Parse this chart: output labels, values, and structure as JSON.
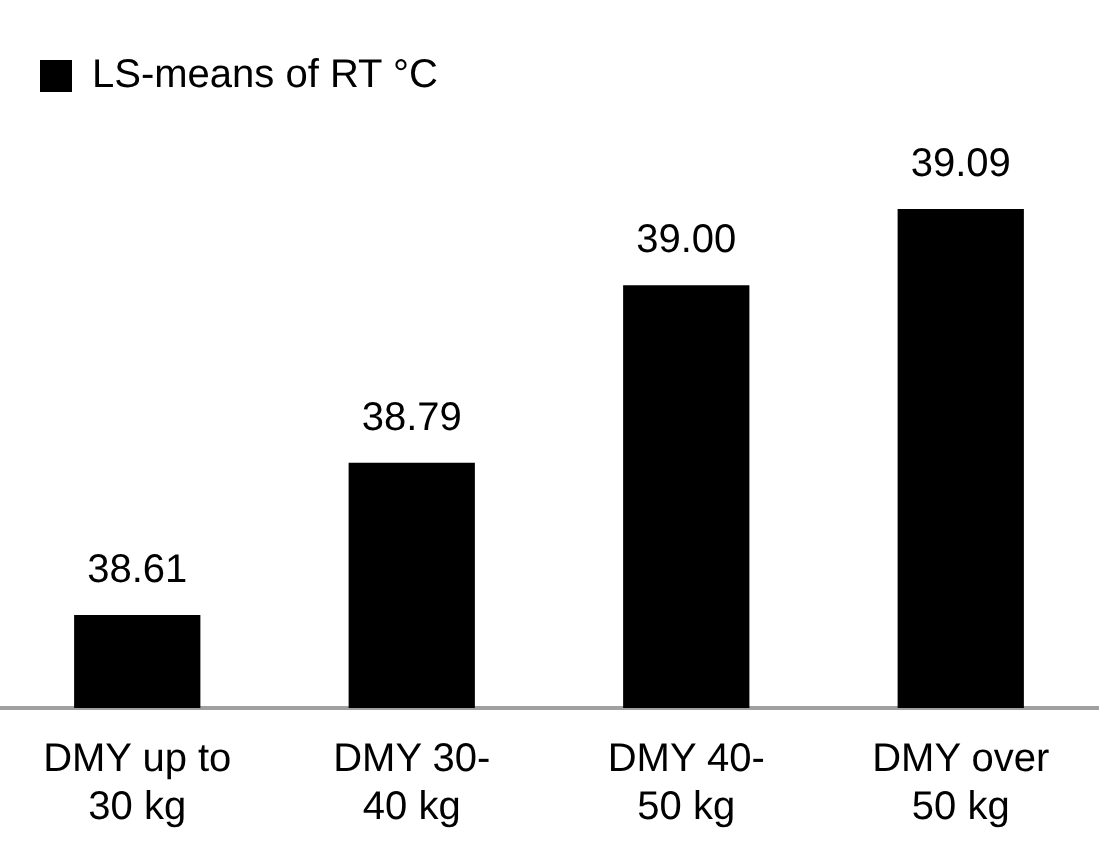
{
  "chart_data": {
    "type": "bar",
    "categories": [
      "DMY up to 30 kg",
      "DMY 30-40 kg",
      "DMY 40-50 kg",
      "DMY over 50 kg"
    ],
    "series": [
      {
        "name": "LS-means of RT °C",
        "color": "#000000",
        "values": [
          38.61,
          38.79,
          39.0,
          39.09
        ],
        "value_labels": [
          "38.61",
          "38.79",
          "39.00",
          "39.09"
        ]
      }
    ],
    "legend": "top left",
    "tick_labels": "x",
    "grid": false
  }
}
